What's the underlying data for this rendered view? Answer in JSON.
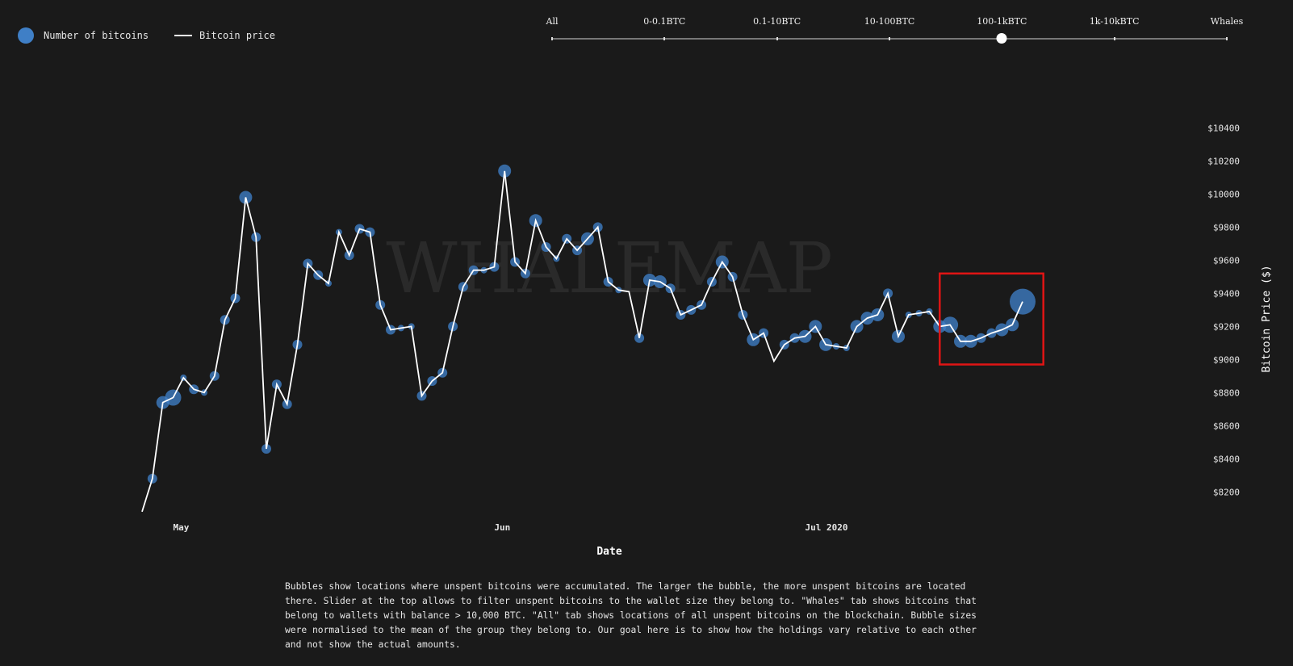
{
  "legend": {
    "bubble_label": "Number of bitcoins",
    "line_label": "Bitcoin price",
    "bubble_color": "#3f7fc6",
    "line_color": "#ffffff"
  },
  "slider": {
    "tabs": [
      "All",
      "0-0.1BTC",
      "0.1-10BTC",
      "10-100BTC",
      "100-1kBTC",
      "1k-10kBTC",
      "Whales"
    ],
    "selected": "100-1kBTC"
  },
  "chart_data": {
    "type": "line",
    "watermark": "WHALEMAP",
    "xlabel": "Date",
    "ylabel": "Bitcoin Price ($)",
    "x_ticks": [
      "May",
      "Jun",
      "Jul 2020"
    ],
    "y_ticks": [
      "$8200",
      "$8400",
      "$8600",
      "$8800",
      "$9000",
      "$9200",
      "$9400",
      "$9600",
      "$9800",
      "$10000",
      "$10200",
      "$10400"
    ],
    "ylim": [
      8050,
      10500
    ],
    "xlim": [
      "2020-04-28",
      "2020-07-28"
    ],
    "series": [
      {
        "name": "Bitcoin price",
        "points": [
          [
            "2020-04-28",
            8080
          ],
          [
            "2020-04-29",
            8280
          ],
          [
            "2020-04-30",
            8740
          ],
          [
            "2020-05-01",
            8770
          ],
          [
            "2020-05-02",
            8890
          ],
          [
            "2020-05-03",
            8820
          ],
          [
            "2020-05-04",
            8800
          ],
          [
            "2020-05-05",
            8900
          ],
          [
            "2020-05-06",
            9240
          ],
          [
            "2020-05-07",
            9370
          ],
          [
            "2020-05-08",
            9980
          ],
          [
            "2020-05-09",
            9740
          ],
          [
            "2020-05-10",
            8460
          ],
          [
            "2020-05-11",
            8850
          ],
          [
            "2020-05-12",
            8730
          ],
          [
            "2020-05-13",
            9090
          ],
          [
            "2020-05-14",
            9580
          ],
          [
            "2020-05-15",
            9510
          ],
          [
            "2020-05-16",
            9460
          ],
          [
            "2020-05-17",
            9770
          ],
          [
            "2020-05-18",
            9630
          ],
          [
            "2020-05-19",
            9790
          ],
          [
            "2020-05-20",
            9770
          ],
          [
            "2020-05-21",
            9330
          ],
          [
            "2020-05-22",
            9180
          ],
          [
            "2020-05-23",
            9190
          ],
          [
            "2020-05-24",
            9200
          ],
          [
            "2020-05-25",
            8780
          ],
          [
            "2020-05-26",
            8870
          ],
          [
            "2020-05-27",
            8920
          ],
          [
            "2020-05-28",
            9200
          ],
          [
            "2020-05-29",
            9440
          ],
          [
            "2020-05-30",
            9540
          ],
          [
            "2020-05-31",
            9540
          ],
          [
            "2020-06-01",
            9560
          ],
          [
            "2020-06-02",
            10140
          ],
          [
            "2020-06-03",
            9590
          ],
          [
            "2020-06-04",
            9520
          ],
          [
            "2020-06-05",
            9840
          ],
          [
            "2020-06-06",
            9680
          ],
          [
            "2020-06-07",
            9610
          ],
          [
            "2020-06-08",
            9730
          ],
          [
            "2020-06-09",
            9660
          ],
          [
            "2020-06-10",
            9730
          ],
          [
            "2020-06-11",
            9800
          ],
          [
            "2020-06-12",
            9470
          ],
          [
            "2020-06-13",
            9420
          ],
          [
            "2020-06-14",
            9410
          ],
          [
            "2020-06-15",
            9130
          ],
          [
            "2020-06-16",
            9480
          ],
          [
            "2020-06-17",
            9470
          ],
          [
            "2020-06-18",
            9430
          ],
          [
            "2020-06-19",
            9270
          ],
          [
            "2020-06-20",
            9300
          ],
          [
            "2020-06-21",
            9330
          ],
          [
            "2020-06-22",
            9470
          ],
          [
            "2020-06-23",
            9590
          ],
          [
            "2020-06-24",
            9500
          ],
          [
            "2020-06-25",
            9270
          ],
          [
            "2020-06-26",
            9120
          ],
          [
            "2020-06-27",
            9160
          ],
          [
            "2020-06-28",
            8990
          ],
          [
            "2020-06-29",
            9090
          ],
          [
            "2020-06-30",
            9130
          ],
          [
            "2020-07-01",
            9140
          ],
          [
            "2020-07-02",
            9200
          ],
          [
            "2020-07-03",
            9090
          ],
          [
            "2020-07-04",
            9080
          ],
          [
            "2020-07-05",
            9070
          ],
          [
            "2020-07-06",
            9200
          ],
          [
            "2020-07-07",
            9250
          ],
          [
            "2020-07-08",
            9270
          ],
          [
            "2020-07-09",
            9400
          ],
          [
            "2020-07-10",
            9140
          ],
          [
            "2020-07-11",
            9270
          ],
          [
            "2020-07-12",
            9280
          ],
          [
            "2020-07-13",
            9290
          ],
          [
            "2020-07-14",
            9200
          ],
          [
            "2020-07-15",
            9210
          ],
          [
            "2020-07-16",
            9110
          ],
          [
            "2020-07-17",
            9110
          ],
          [
            "2020-07-18",
            9130
          ],
          [
            "2020-07-19",
            9160
          ],
          [
            "2020-07-20",
            9180
          ],
          [
            "2020-07-21",
            9210
          ],
          [
            "2020-07-22",
            9350
          ]
        ]
      },
      {
        "name": "Number of bitcoins",
        "kind": "bubble",
        "note": "relative bubble size per day (normalised, no units)",
        "sizes": [
          0,
          2,
          3,
          4,
          1,
          2,
          1,
          2,
          2,
          2,
          3,
          2,
          2,
          2,
          2,
          2,
          2,
          2,
          1,
          1,
          2,
          2,
          2,
          2,
          2,
          1,
          1,
          2,
          2,
          2,
          2,
          2,
          2,
          1,
          2,
          3,
          2,
          2,
          3,
          2,
          1,
          2,
          2,
          3,
          2,
          2,
          1,
          0,
          2,
          3,
          3,
          2,
          2,
          2,
          2,
          2,
          3,
          2,
          2,
          3,
          2,
          0,
          2,
          2,
          3,
          3,
          3,
          1,
          1,
          3,
          3,
          3,
          2,
          3,
          1,
          1,
          1,
          3,
          4,
          3,
          3,
          2,
          2,
          3,
          3,
          7
        ]
      }
    ]
  },
  "annotation": {
    "type": "highlight-box",
    "color": "#e01414",
    "x_range": [
      "2020-07-14",
      "2020-07-24"
    ],
    "y_range": [
      8970,
      9520
    ]
  },
  "note": "Bubbles show locations where unspent bitcoins were accumulated. The larger the bubble, the more unspent bitcoins are located there. Slider at the top allows to filter unspent bitcoins to the wallet size they belong to. \"Whales\" tab shows bitcoins that belong to wallets with balance > 10,000 BTC. \"All\" tab shows locations of all unspent bitcoins on the blockchain. Bubble sizes were normalised to the mean of the group they belong to. Our goal here is to show how the holdings vary relative to each other and not show the actual amounts."
}
